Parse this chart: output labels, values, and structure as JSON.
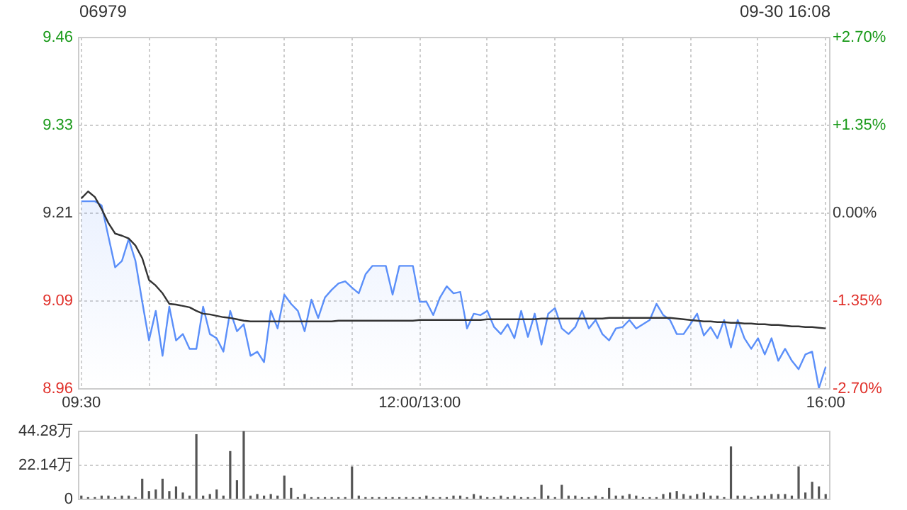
{
  "chart_data": [
    {
      "type": "line",
      "title": "06979",
      "subtitle": "09-30 16:08",
      "categories": [
        "09:30",
        null,
        null,
        null,
        null,
        null,
        null,
        null,
        null,
        null,
        null,
        null,
        null,
        null,
        null,
        null,
        null,
        null,
        null,
        null,
        null,
        null,
        null,
        null,
        null,
        null,
        null,
        null,
        null,
        null,
        null,
        null,
        null,
        null,
        null,
        null,
        null,
        null,
        null,
        null,
        null,
        null,
        null,
        null,
        null,
        null,
        null,
        null,
        null,
        null,
        "12:00/13:00",
        null,
        null,
        null,
        null,
        null,
        null,
        null,
        null,
        null,
        null,
        null,
        null,
        null,
        null,
        null,
        null,
        null,
        null,
        null,
        null,
        null,
        null,
        null,
        null,
        null,
        null,
        null,
        null,
        null,
        null,
        null,
        null,
        null,
        null,
        null,
        null,
        null,
        null,
        null,
        null,
        null,
        null,
        null,
        null,
        null,
        null,
        null,
        null,
        null,
        null,
        null,
        null,
        null,
        null,
        null,
        null,
        null,
        null,
        null,
        "16:00"
      ],
      "ylim": [
        8.96,
        9.46
      ],
      "yticks": [
        8.96,
        {
          "value": 9.085,
          "label": "9.09"
        },
        9.21,
        {
          "value": 9.335,
          "label": "9.33"
        },
        9.46
      ],
      "y2lim": [
        -2.7,
        2.7
      ],
      "y2ticks": [
        {
          "value": -2.7,
          "label": "-2.70%"
        },
        {
          "value": -1.35,
          "label": "-1.35%"
        },
        {
          "value": 0,
          "label": "0.00%"
        },
        {
          "value": 1.35,
          "label": "+1.35%"
        },
        {
          "value": 2.7,
          "label": "+2.70%"
        }
      ],
      "grid": true,
      "series": [
        {
          "type": "area",
          "color": "#5b8ff9",
          "values": [
            9.226,
            9.226,
            9.226,
            9.22,
            9.176,
            9.132,
            9.141,
            9.172,
            9.141,
            9.083,
            9.028,
            9.07,
            9.006,
            9.076,
            9.028,
            9.037,
            9.016,
            9.016,
            9.076,
            9.037,
            9.031,
            9.012,
            9.07,
            9.041,
            9.051,
            9.006,
            9.012,
            8.997,
            9.07,
            9.045,
            9.093,
            9.08,
            9.07,
            9.041,
            9.086,
            9.06,
            9.089,
            9.1,
            9.109,
            9.112,
            9.103,
            9.095,
            9.122,
            9.134,
            9.134,
            9.134,
            9.093,
            9.134,
            9.134,
            9.134,
            9.083,
            9.083,
            9.064,
            9.089,
            9.105,
            9.095,
            9.097,
            9.045,
            9.066,
            9.064,
            9.07,
            9.047,
            9.037,
            9.051,
            9.031,
            9.07,
            9.033,
            9.066,
            9.022,
            9.066,
            9.074,
            9.045,
            9.037,
            9.047,
            9.07,
            9.045,
            9.057,
            9.037,
            9.028,
            9.045,
            9.047,
            9.057,
            9.045,
            9.051,
            9.057,
            9.08,
            9.064,
            9.057,
            9.037,
            9.037,
            9.051,
            9.066,
            9.035,
            9.047,
            9.031,
            9.057,
            9.018,
            9.057,
            9.031,
            9.016,
            9.031,
            9.008,
            9.031,
            8.999,
            9.016,
            8.999,
            8.987,
            9.008,
            9.012,
            8.96,
            8.99
          ]
        },
        {
          "color": "#333333",
          "values": [
            9.23,
            9.24,
            9.232,
            9.215,
            9.195,
            9.18,
            9.177,
            9.173,
            9.163,
            9.145,
            9.114,
            9.106,
            9.095,
            9.08,
            9.079,
            9.077,
            9.075,
            9.07,
            9.066,
            9.065,
            9.063,
            9.061,
            9.06,
            9.058,
            9.056,
            9.055,
            9.055,
            9.055,
            9.055,
            9.055,
            9.055,
            9.055,
            9.055,
            9.055,
            9.055,
            9.055,
            9.055,
            9.055,
            9.056,
            9.056,
            9.056,
            9.056,
            9.056,
            9.056,
            9.056,
            9.056,
            9.056,
            9.056,
            9.056,
            9.056,
            9.057,
            9.057,
            9.057,
            9.057,
            9.057,
            9.057,
            9.057,
            9.057,
            9.057,
            9.057,
            9.058,
            9.058,
            9.058,
            9.058,
            9.058,
            9.058,
            9.058,
            9.058,
            9.059,
            9.059,
            9.059,
            9.059,
            9.059,
            9.059,
            9.059,
            9.059,
            9.059,
            9.059,
            9.06,
            9.06,
            9.06,
            9.06,
            9.06,
            9.06,
            9.06,
            9.06,
            9.06,
            9.06,
            9.059,
            9.058,
            9.057,
            9.056,
            9.055,
            9.055,
            9.054,
            9.054,
            9.053,
            9.053,
            9.052,
            9.052,
            9.051,
            9.051,
            9.05,
            9.05,
            9.049,
            9.048,
            9.048,
            9.047,
            9.047,
            9.046,
            9.045
          ]
        }
      ]
    },
    {
      "type": "bar",
      "categories": [
        null,
        null,
        null,
        null,
        null,
        null,
        null,
        null,
        null,
        null,
        null,
        null,
        null,
        null,
        null,
        null,
        null,
        null,
        null,
        null,
        null,
        null,
        null,
        null,
        null,
        null,
        null,
        null,
        null,
        null,
        null,
        null,
        null,
        null,
        null,
        null,
        null,
        null,
        null,
        null,
        null,
        null,
        null,
        null,
        null,
        null,
        null,
        null,
        null,
        null,
        null,
        null,
        null,
        null,
        null,
        null,
        null,
        null,
        null,
        null,
        null,
        null,
        null,
        null,
        null,
        null,
        null,
        null,
        null,
        null,
        null,
        null,
        null,
        null,
        null,
        null,
        null,
        null,
        null,
        null,
        null,
        null,
        null,
        null,
        null,
        null,
        null,
        null,
        null,
        null,
        null,
        null,
        null,
        null,
        null,
        null,
        null,
        null,
        null,
        null,
        null,
        null,
        null,
        null,
        null,
        null,
        null,
        null,
        null,
        null,
        null
      ],
      "ylim": [
        0,
        44.28
      ],
      "yticks": [
        0,
        {
          "value": 22.14,
          "label": "22.14万"
        },
        {
          "value": 44.28,
          "label": "44.28万"
        }
      ],
      "grid": "y",
      "tick_labels": "y",
      "color": "#555555",
      "values": [
        2,
        1,
        1,
        2,
        2,
        1,
        2,
        2,
        1,
        13,
        5,
        6,
        13,
        5,
        8,
        4,
        2,
        42,
        2,
        3,
        6,
        2,
        31,
        12,
        44,
        2,
        3,
        2,
        3,
        2,
        15,
        7,
        1,
        3,
        1,
        1,
        1,
        1,
        1,
        1,
        21,
        2,
        1,
        1,
        1,
        1,
        1,
        1,
        1,
        1,
        1,
        2,
        1,
        1,
        1,
        2,
        2,
        1,
        3,
        2,
        1,
        1,
        2,
        1,
        2,
        1,
        1,
        1,
        9,
        2,
        1,
        9,
        2,
        2,
        1,
        1,
        2,
        1,
        7,
        2,
        2,
        3,
        2,
        1,
        1,
        1,
        3,
        4,
        5,
        3,
        2,
        3,
        4,
        2,
        2,
        1,
        34,
        2,
        2,
        1,
        2,
        2,
        3,
        3,
        3,
        2,
        21,
        4,
        11,
        8,
        3
      ]
    }
  ]
}
